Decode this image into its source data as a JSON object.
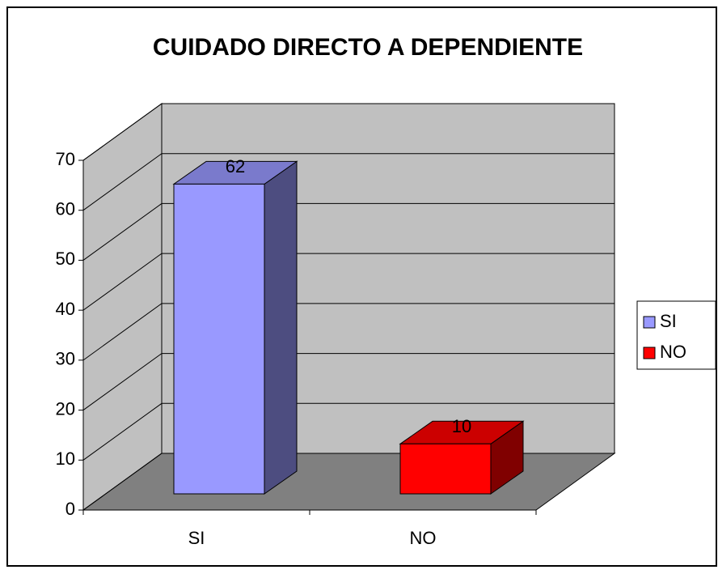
{
  "chart_data": {
    "type": "bar3d",
    "title": "CUIDADO DIRECTO A DEPENDIENTE",
    "categories": [
      "SI",
      "NO"
    ],
    "values": [
      62,
      10
    ],
    "colors": [
      "#9999ff",
      "#ff0000"
    ],
    "ylim": [
      0,
      70
    ],
    "yticks": [
      0,
      10,
      20,
      30,
      40,
      50,
      60,
      70
    ],
    "grid": true,
    "legend": "right"
  }
}
